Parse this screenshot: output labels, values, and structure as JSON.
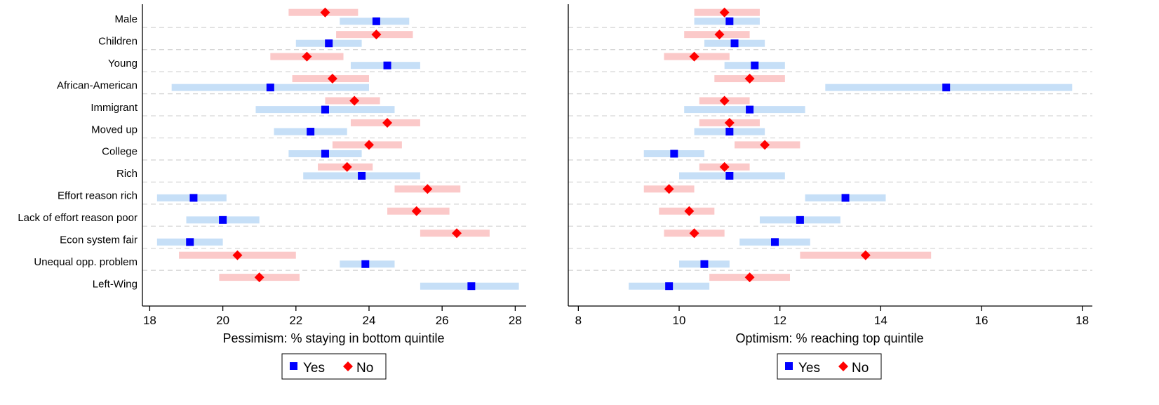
{
  "categories": [
    "Male",
    "Children",
    "Young",
    "African-American",
    "Immigrant",
    "Moved up",
    "College",
    "Rich",
    "Effort reason rich",
    "Lack of effort reason poor",
    "Econ system fair",
    "Unequal opp. problem",
    "Left-Wing"
  ],
  "legend": {
    "yes_label": "Yes",
    "no_label": "No"
  },
  "colors": {
    "yes_marker": "#0000ff",
    "yes_ci": "#c6dff7",
    "no_marker": "#ff0000",
    "no_ci": "#fbc9c9",
    "grid": "#d6d6d6"
  },
  "chart_data": [
    {
      "type": "scatter",
      "title": "",
      "xlabel": "Pessimism: % staying in bottom quintile",
      "ylabel": "",
      "xlim": [
        17.8,
        28.3
      ],
      "xticks": [
        18,
        20,
        22,
        24,
        26,
        28
      ],
      "legend_position": "bottom-center",
      "grid": true,
      "series": [
        {
          "name": "Yes",
          "marker": "square",
          "values": [
            24.2,
            22.9,
            24.5,
            21.3,
            22.8,
            22.4,
            22.8,
            23.8,
            19.2,
            20.0,
            19.1,
            23.9,
            26.8
          ],
          "ci_low": [
            23.2,
            22.0,
            23.5,
            18.6,
            20.9,
            21.4,
            21.8,
            22.2,
            18.2,
            19.0,
            18.2,
            23.2,
            25.4
          ],
          "ci_high": [
            25.1,
            23.8,
            25.4,
            24.0,
            24.7,
            23.4,
            23.8,
            25.4,
            20.1,
            21.0,
            20.0,
            24.7,
            28.1
          ]
        },
        {
          "name": "No",
          "marker": "diamond",
          "values": [
            22.8,
            24.2,
            22.3,
            23.0,
            23.6,
            24.5,
            24.0,
            23.4,
            25.6,
            25.3,
            26.4,
            20.4,
            21.0
          ],
          "ci_low": [
            21.8,
            23.1,
            21.3,
            21.9,
            22.8,
            23.5,
            23.0,
            22.6,
            24.7,
            24.5,
            25.4,
            18.8,
            19.9
          ],
          "ci_high": [
            23.7,
            25.2,
            23.3,
            24.0,
            24.3,
            25.4,
            24.9,
            24.1,
            26.5,
            26.2,
            27.3,
            22.0,
            22.1
          ]
        }
      ]
    },
    {
      "type": "scatter",
      "title": "",
      "xlabel": "Optimism: % reaching top quintile",
      "ylabel": "",
      "xlim": [
        7.8,
        18.2
      ],
      "xticks": [
        8,
        10,
        12,
        14,
        16,
        18
      ],
      "legend_position": "bottom-center",
      "grid": true,
      "series": [
        {
          "name": "Yes",
          "marker": "square",
          "values": [
            11.0,
            11.1,
            11.5,
            15.3,
            11.4,
            11.0,
            9.9,
            11.0,
            13.3,
            12.4,
            11.9,
            10.5,
            9.8
          ],
          "ci_low": [
            10.3,
            10.5,
            10.9,
            12.9,
            10.1,
            10.3,
            9.3,
            10.0,
            12.5,
            11.6,
            11.2,
            10.0,
            9.0
          ],
          "ci_high": [
            11.6,
            11.7,
            12.1,
            17.8,
            12.5,
            11.7,
            10.5,
            12.1,
            14.1,
            13.2,
            12.6,
            11.0,
            10.6
          ]
        },
        {
          "name": "No",
          "marker": "diamond",
          "values": [
            10.9,
            10.8,
            10.3,
            11.4,
            10.9,
            11.0,
            11.7,
            10.9,
            9.8,
            10.2,
            10.3,
            13.7,
            11.4
          ],
          "ci_low": [
            10.3,
            10.1,
            9.7,
            10.7,
            10.4,
            10.4,
            11.1,
            10.4,
            9.3,
            9.6,
            9.7,
            12.4,
            10.6
          ],
          "ci_high": [
            11.6,
            11.4,
            11.0,
            12.1,
            11.4,
            11.6,
            12.4,
            11.4,
            10.3,
            10.7,
            10.9,
            15.0,
            12.2
          ]
        }
      ]
    }
  ]
}
